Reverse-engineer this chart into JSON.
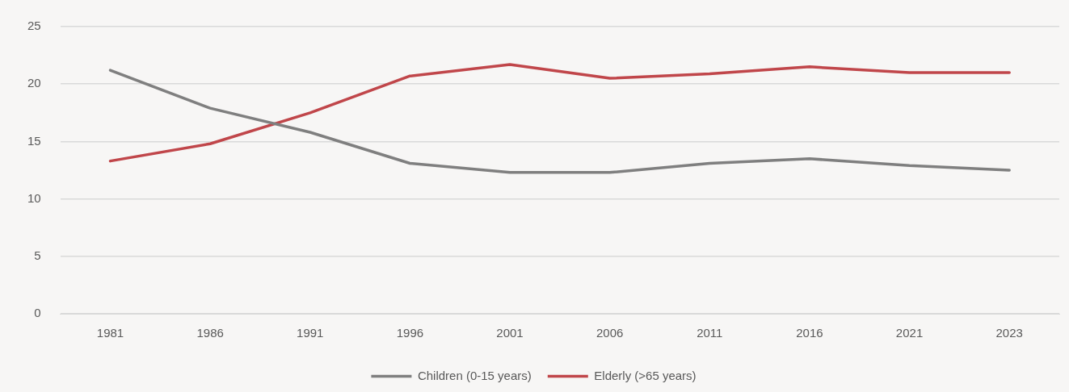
{
  "chart_data": {
    "type": "line",
    "categories": [
      "1981",
      "1986",
      "1991",
      "1996",
      "2001",
      "2006",
      "2011",
      "2016",
      "2021",
      "2023"
    ],
    "series": [
      {
        "name": "Children (0-15 years)",
        "color": "#7f7f7f",
        "values": [
          21.2,
          17.9,
          15.8,
          13.1,
          12.3,
          12.3,
          13.1,
          13.5,
          12.9,
          12.5
        ]
      },
      {
        "name": "Elderly (>65 years)",
        "color": "#c0464a",
        "values": [
          13.3,
          14.8,
          17.5,
          20.7,
          21.7,
          20.5,
          20.9,
          21.5,
          21.0,
          21.0
        ]
      }
    ],
    "ylim": [
      0,
      25
    ],
    "yticks": [
      0,
      5,
      10,
      15,
      20,
      25
    ],
    "grid": "y",
    "legend": "bottom",
    "marker": "none",
    "line_style": "solid"
  }
}
